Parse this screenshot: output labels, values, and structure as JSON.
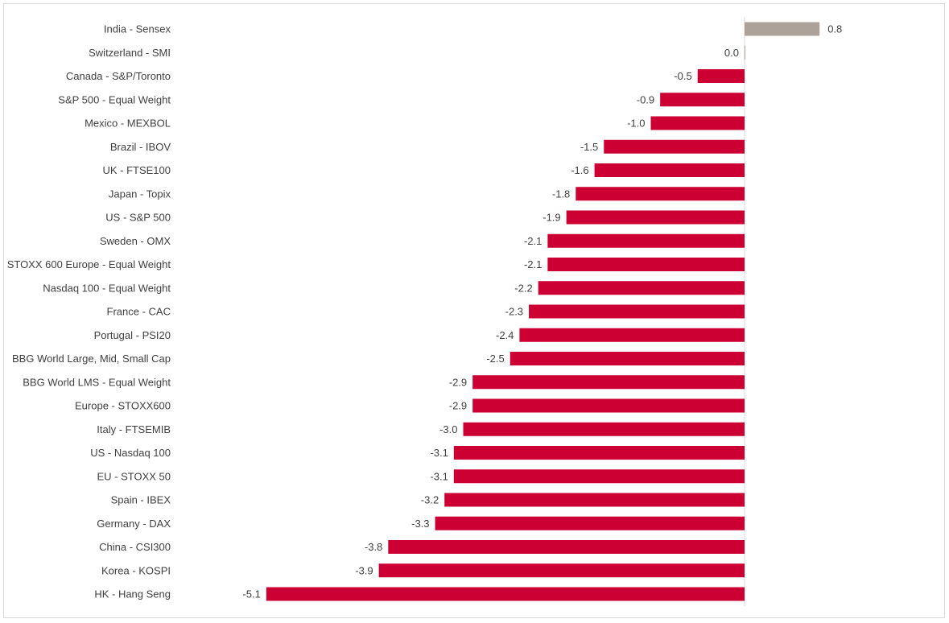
{
  "chart_data": {
    "type": "bar",
    "orientation": "horizontal",
    "categories": [
      "India - Sensex",
      "Switzerland - SMI",
      "Canada - S&P/Toronto",
      "S&P 500 - Equal Weight",
      "Mexico - MEXBOL",
      "Brazil - IBOV",
      "UK - FTSE100",
      "Japan - Topix",
      "US - S&P 500",
      "Sweden - OMX",
      "STOXX 600 Europe - Equal Weight",
      "Nasdaq 100 - Equal Weight",
      "France - CAC",
      "Portugal - PSI20",
      "BBG World Large, Mid, Small Cap",
      "BBG World LMS - Equal Weight",
      "Europe - STOXX600",
      "Italy - FTSEMIB",
      "US - Nasdaq 100",
      "EU - STOXX 50",
      "Spain - IBEX",
      "Germany - DAX",
      "China - CSI300",
      "Korea - KOSPI",
      "HK - Hang Seng"
    ],
    "values": [
      0.8,
      0.0,
      -0.5,
      -0.9,
      -1.0,
      -1.5,
      -1.6,
      -1.8,
      -1.9,
      -2.1,
      -2.1,
      -2.2,
      -2.3,
      -2.4,
      -2.5,
      -2.9,
      -2.9,
      -3.0,
      -3.1,
      -3.1,
      -3.2,
      -3.3,
      -3.8,
      -3.9,
      -5.1
    ],
    "value_labels": [
      "0.8",
      "0.0",
      "-0.5",
      "-0.9",
      "-1.0",
      "-1.5",
      "-1.6",
      "-1.8",
      "-1.9",
      "-2.1",
      "-2.1",
      "-2.2",
      "-2.3",
      "-2.4",
      "-2.5",
      "-2.9",
      "-2.9",
      "-3.0",
      "-3.1",
      "-3.1",
      "-3.2",
      "-3.3",
      "-3.8",
      "-3.9",
      "-5.1"
    ],
    "xlim": [
      -5.1,
      0.8
    ],
    "title": "",
    "xlabel": "",
    "ylabel": "",
    "grid": false,
    "legend": "none",
    "colors": {
      "positive": "#ada299",
      "negative": "#cc0033",
      "axis": "#d9d9d9",
      "text": "#404040"
    }
  }
}
